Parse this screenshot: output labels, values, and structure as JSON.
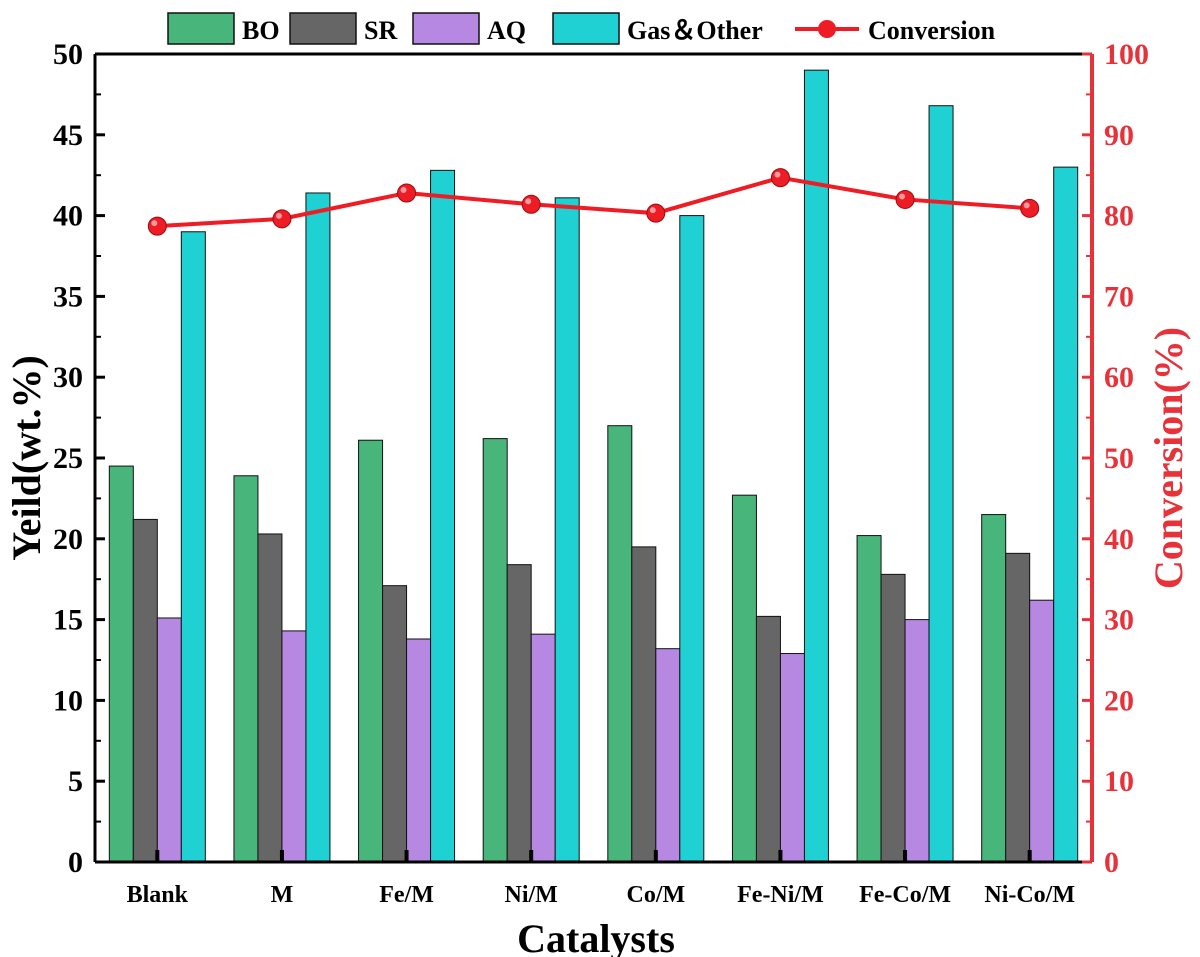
{
  "chart_data": {
    "type": "bar",
    "categories": [
      "Blank",
      "M",
      "Fe/M",
      "Ni/M",
      "Co/M",
      "Fe-Ni/M",
      "Fe-Co/M",
      "Ni-Co/M"
    ],
    "series": [
      {
        "name": "BO",
        "axis": "left",
        "color": "#48b57b",
        "values": [
          24.5,
          23.9,
          26.1,
          26.2,
          27.0,
          22.7,
          20.2,
          21.5
        ]
      },
      {
        "name": "SR",
        "axis": "left",
        "color": "#666666",
        "values": [
          21.2,
          20.3,
          17.1,
          18.4,
          19.5,
          15.2,
          17.8,
          19.1
        ]
      },
      {
        "name": "AQ",
        "axis": "left",
        "color": "#b788e2",
        "values": [
          15.1,
          14.3,
          13.8,
          14.1,
          13.2,
          12.9,
          15.0,
          16.2
        ]
      },
      {
        "name": "Gas＆Other",
        "axis": "left",
        "color": "#1fd1d3",
        "values": [
          39.0,
          41.4,
          42.8,
          41.1,
          40.0,
          49.0,
          46.8,
          43.0
        ]
      },
      {
        "name": "Conversion",
        "axis": "right",
        "type": "line",
        "color": "#ee1c24",
        "values": [
          78.7,
          79.6,
          82.8,
          81.4,
          80.3,
          84.7,
          82.0,
          80.9
        ]
      }
    ],
    "xlabel": "Catalysts",
    "ylabel": "Yeild(wt.%)",
    "y2label": "Conversion(%)",
    "ylim": [
      0,
      50
    ],
    "y2lim": [
      0,
      100
    ],
    "yticks": [
      "0",
      "5",
      "10",
      "15",
      "20",
      "25",
      "30",
      "35",
      "40",
      "45",
      "50"
    ],
    "y2ticks": [
      "0",
      "10",
      "20",
      "30",
      "40",
      "50",
      "60",
      "70",
      "80",
      "90",
      "100"
    ],
    "legend_position": "top",
    "grid": false,
    "right_axis_color": "#e8323a"
  }
}
